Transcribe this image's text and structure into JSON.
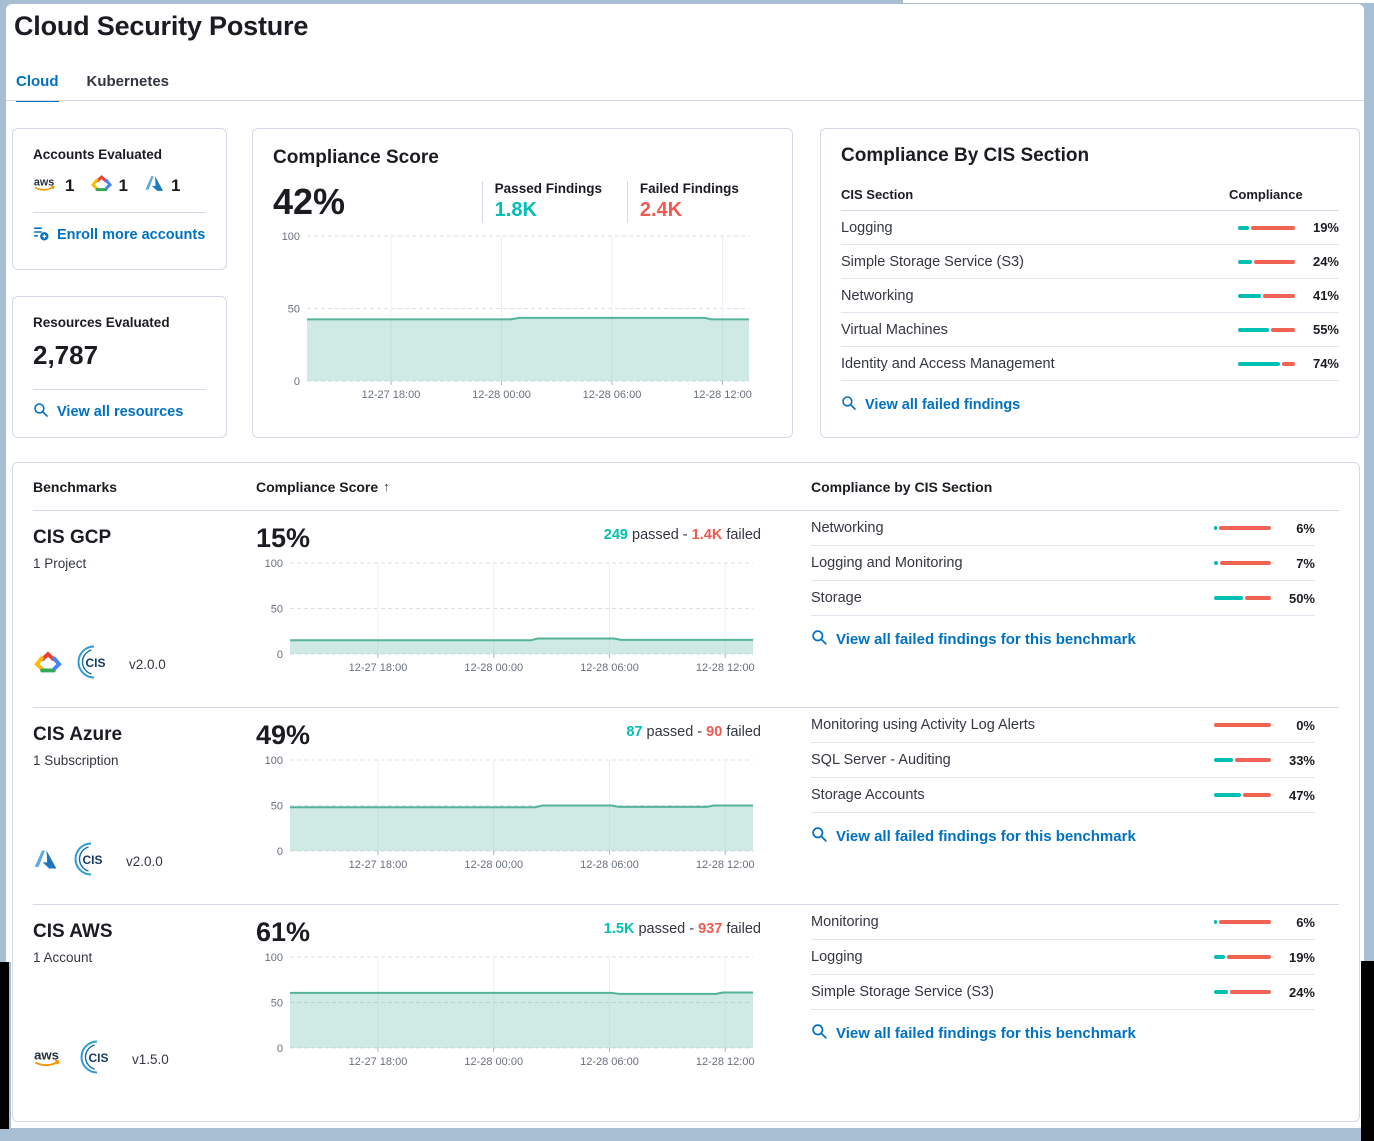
{
  "page": {
    "title": "Cloud Security Posture"
  },
  "tabs": {
    "cloud": "Cloud",
    "kubernetes": "Kubernetes"
  },
  "accounts_card": {
    "title": "Accounts Evaluated",
    "aws_count": "1",
    "gcp_count": "1",
    "azure_count": "1",
    "enroll_link": "Enroll more accounts"
  },
  "resources_card": {
    "title": "Resources Evaluated",
    "count": "2,787",
    "view_link": "View all resources"
  },
  "score_card": {
    "title": "Compliance Score",
    "score": "42%",
    "passed_label": "Passed Findings",
    "passed_value": "1.8K",
    "failed_label": "Failed Findings",
    "failed_value": "2.4K"
  },
  "cis_card": {
    "title": "Compliance By CIS Section",
    "col_section": "CIS Section",
    "col_compliance": "Compliance",
    "rows": [
      {
        "label": "Logging",
        "pct": 19,
        "pct_label": "19%"
      },
      {
        "label": "Simple Storage Service (S3)",
        "pct": 24,
        "pct_label": "24%"
      },
      {
        "label": "Networking",
        "pct": 41,
        "pct_label": "41%"
      },
      {
        "label": "Virtual Machines",
        "pct": 55,
        "pct_label": "55%"
      },
      {
        "label": "Identity and Access Management",
        "pct": 74,
        "pct_label": "74%"
      }
    ],
    "view_link": "View all failed findings"
  },
  "benchmarks": {
    "col_benchmarks": "Benchmarks",
    "col_score": "Compliance Score",
    "sort_arrow": "↑",
    "col_sections": "Compliance by CIS Section",
    "sep_passed": " passed - ",
    "sep_failed": " failed",
    "view_link": "View all failed findings for this benchmark",
    "rows": [
      {
        "name": "CIS GCP",
        "subtitle": "1 Project",
        "score": "15%",
        "passed": "249",
        "failed": "1.4K",
        "version": "v2.0.0",
        "sections": [
          {
            "label": "Networking",
            "pct": 6,
            "pct_label": "6%"
          },
          {
            "label": "Logging and Monitoring",
            "pct": 7,
            "pct_label": "7%"
          },
          {
            "label": "Storage",
            "pct": 50,
            "pct_label": "50%"
          }
        ]
      },
      {
        "name": "CIS Azure",
        "subtitle": "1 Subscription",
        "score": "49%",
        "passed": "87",
        "failed": "90",
        "version": "v2.0.0",
        "sections": [
          {
            "label": "Monitoring using Activity Log Alerts",
            "pct": 0,
            "pct_label": "0%"
          },
          {
            "label": "SQL Server - Auditing",
            "pct": 33,
            "pct_label": "33%"
          },
          {
            "label": "Storage Accounts",
            "pct": 47,
            "pct_label": "47%"
          }
        ]
      },
      {
        "name": "CIS AWS",
        "subtitle": "1 Account",
        "score": "61%",
        "passed": "1.5K",
        "failed": "937",
        "version": "v1.5.0",
        "sections": [
          {
            "label": "Monitoring",
            "pct": 6,
            "pct_label": "6%"
          },
          {
            "label": "Logging",
            "pct": 19,
            "pct_label": "19%"
          },
          {
            "label": "Simple Storage Service (S3)",
            "pct": 24,
            "pct_label": "24%"
          }
        ]
      }
    ]
  },
  "chart_data": [
    {
      "type": "area",
      "title": "Compliance Score trend",
      "ymax": 100,
      "yticks": [
        0,
        50,
        100
      ],
      "xtick_pos": [
        0.19,
        0.44,
        0.69,
        0.94
      ],
      "xlabels": [
        "12-27 18:00",
        "12-28 00:00",
        "12-28 06:00",
        "12-28 12:00"
      ],
      "points": [
        [
          0,
          42.5
        ],
        [
          0.46,
          42.5
        ],
        [
          0.48,
          43.5
        ],
        [
          0.9,
          43.5
        ],
        [
          0.915,
          42.5
        ],
        [
          1,
          42.5
        ]
      ]
    },
    {
      "type": "area",
      "title": "CIS GCP compliance trend",
      "ymax": 100,
      "yticks": [
        0,
        50,
        100
      ],
      "xtick_pos": [
        0.19,
        0.44,
        0.69,
        0.94
      ],
      "xlabels": [
        "12-27 18:00",
        "12-28 00:00",
        "12-28 06:00",
        "12-28 12:00"
      ],
      "points": [
        [
          0,
          15
        ],
        [
          0.52,
          15
        ],
        [
          0.535,
          17
        ],
        [
          0.7,
          17
        ],
        [
          0.715,
          15.5
        ],
        [
          1,
          15.5
        ]
      ]
    },
    {
      "type": "area",
      "title": "CIS Azure compliance trend",
      "ymax": 100,
      "yticks": [
        0,
        50,
        100
      ],
      "xtick_pos": [
        0.19,
        0.44,
        0.69,
        0.94
      ],
      "xlabels": [
        "12-27 18:00",
        "12-28 00:00",
        "12-28 06:00",
        "12-28 12:00"
      ],
      "points": [
        [
          0,
          48
        ],
        [
          0.53,
          48
        ],
        [
          0.545,
          50
        ],
        [
          0.695,
          50
        ],
        [
          0.71,
          48.5
        ],
        [
          0.9,
          48.5
        ],
        [
          0.915,
          50
        ],
        [
          1,
          50
        ]
      ]
    },
    {
      "type": "area",
      "title": "CIS AWS compliance trend",
      "ymax": 100,
      "yticks": [
        0,
        50,
        100
      ],
      "xtick_pos": [
        0.19,
        0.44,
        0.69,
        0.94
      ],
      "xlabels": [
        "12-27 18:00",
        "12-28 00:00",
        "12-28 06:00",
        "12-28 12:00"
      ],
      "points": [
        [
          0,
          60.5
        ],
        [
          0.695,
          60.5
        ],
        [
          0.71,
          59.5
        ],
        [
          0.92,
          59.5
        ],
        [
          0.935,
          61
        ],
        [
          1,
          61
        ]
      ]
    }
  ],
  "colors": {
    "passed": "#00BFB3",
    "failed": "#EE6352",
    "passed_text": "#00BFB3",
    "failed_text": "#F2594F",
    "link": "#0071C2",
    "chart_line": "#54B399",
    "chart_fill": "rgba(84,179,153,0.28)",
    "frame": "#A8BED2"
  }
}
